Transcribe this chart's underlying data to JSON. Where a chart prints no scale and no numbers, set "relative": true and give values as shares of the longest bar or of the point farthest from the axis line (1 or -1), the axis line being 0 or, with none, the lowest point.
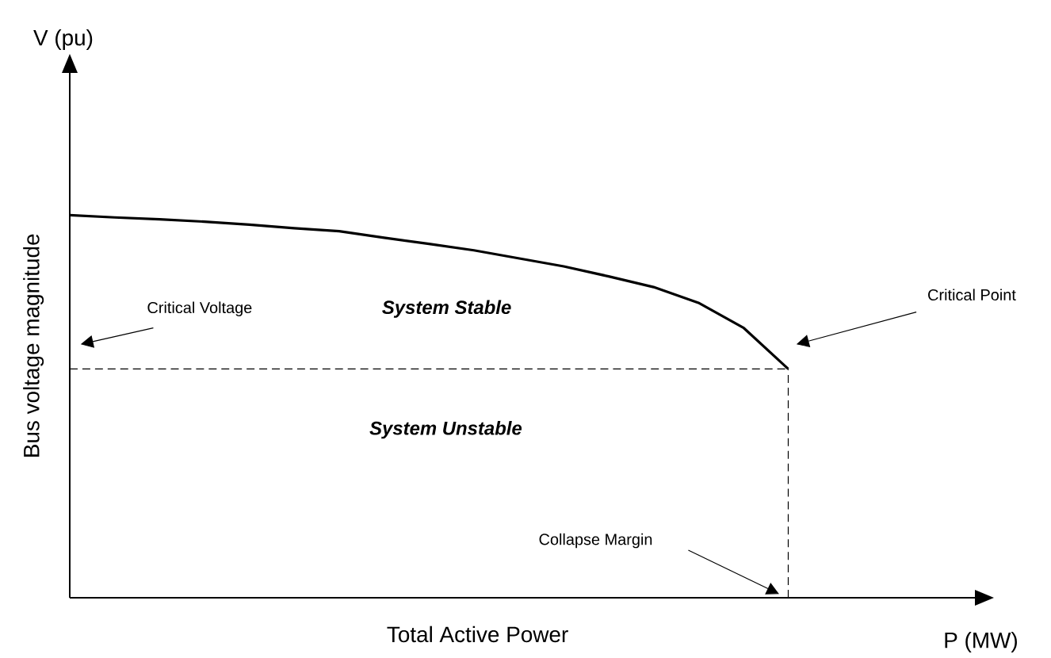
{
  "chart_data": {
    "type": "line",
    "relative": true,
    "xlabel": "Total Active Power",
    "ylabel": "Bus voltage magnitude",
    "categories": [
      null,
      null,
      null,
      null,
      null,
      null,
      null,
      null,
      null,
      null,
      null,
      null,
      null,
      null,
      null,
      null,
      null
    ],
    "values": [
      1,
      0.994,
      0.989,
      0.983,
      0.975,
      0.966,
      0.958,
      0.941,
      0.925,
      0.908,
      0.887,
      0.866,
      0.84,
      0.812,
      0.771,
      0.706,
      0.598
    ],
    "color": "#000000",
    "tick_labels": false,
    "ref_lines": [
      {
        "axis": "y",
        "value": 0.598,
        "line_style": "dashed",
        "color": "#000000"
      }
    ],
    "annotations": [
      "V (pu)",
      "P (MW)",
      "Critical Voltage",
      "System Stable",
      "System Unstable",
      "Critical Point",
      "Collapse Margin"
    ]
  }
}
